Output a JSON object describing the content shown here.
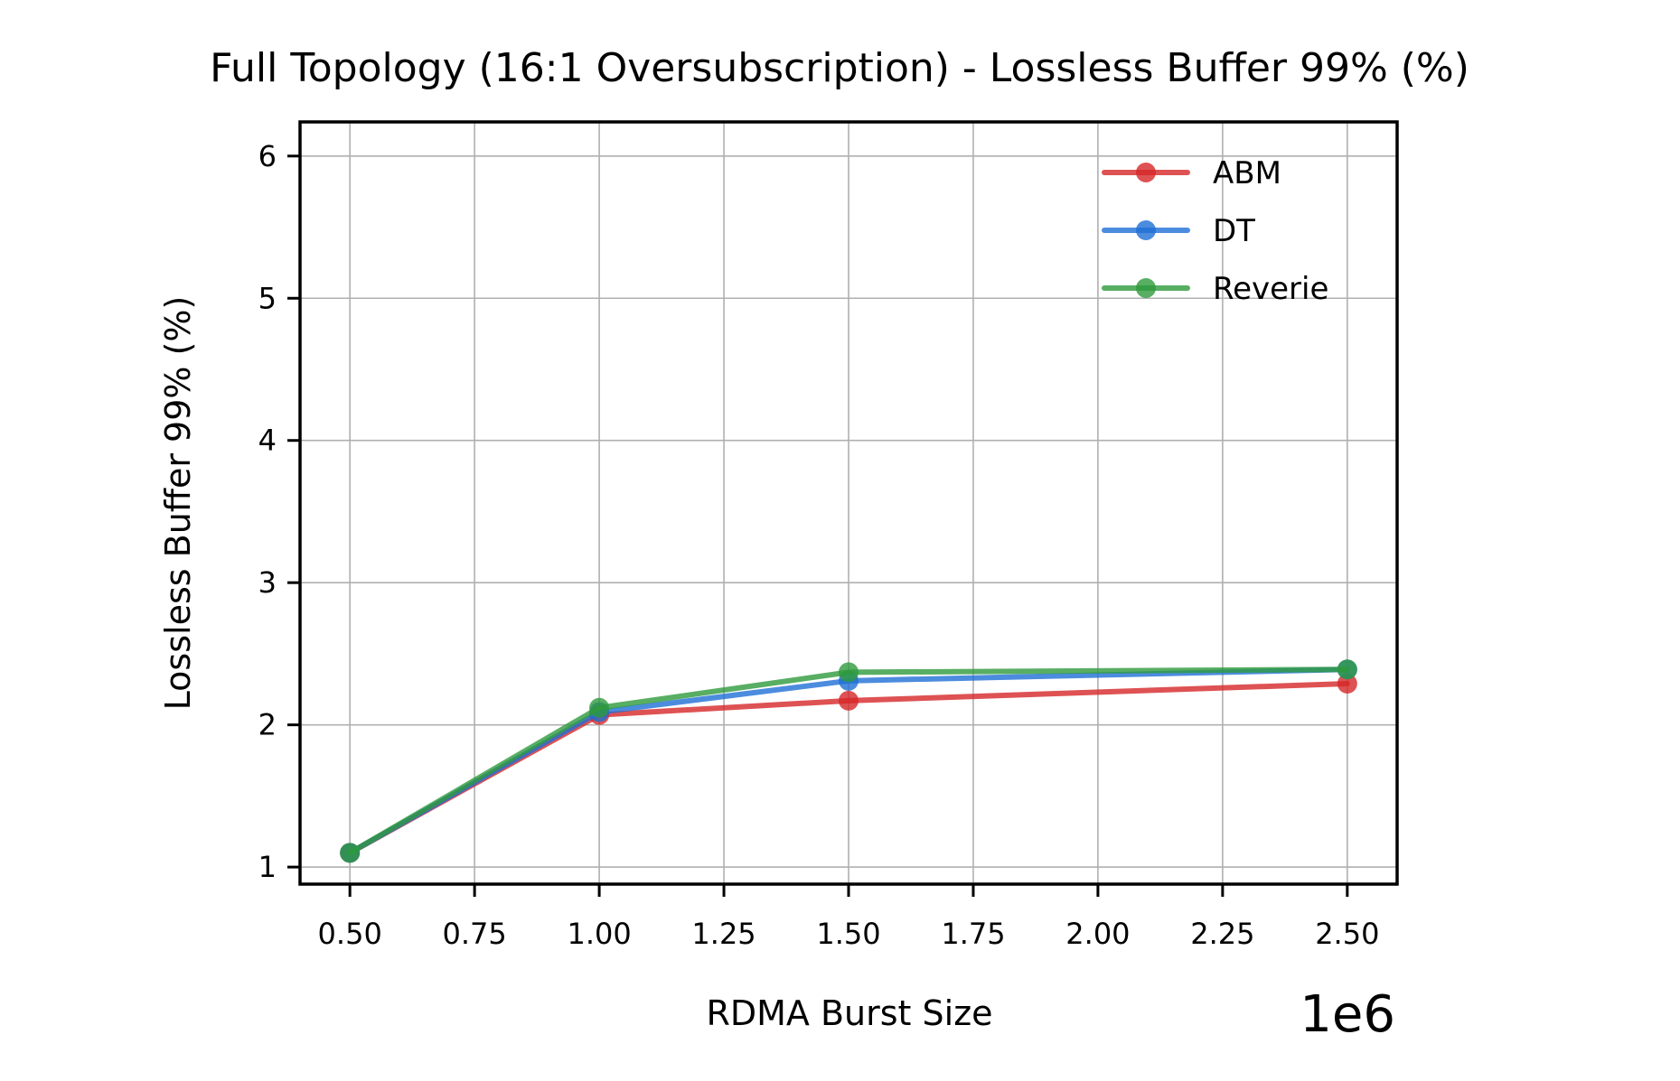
{
  "chart_data": {
    "type": "line",
    "title": "Full Topology (16:1 Oversubscription) - Lossless Buffer 99% (%)",
    "xlabel": "RDMA Burst Size",
    "ylabel": "Lossless Buffer 99% (%)",
    "x_offset_label": "1e6",
    "x_scale": 1000000,
    "xlim": [
      0.4,
      2.6
    ],
    "ylim": [
      0.88,
      6.24
    ],
    "x_ticks": [
      0.5,
      0.75,
      1.0,
      1.25,
      1.5,
      1.75,
      2.0,
      2.25,
      2.5
    ],
    "x_tick_labels": [
      "0.50",
      "0.75",
      "1.00",
      "1.25",
      "1.50",
      "1.75",
      "2.00",
      "2.25",
      "2.50"
    ],
    "y_ticks": [
      1,
      2,
      3,
      4,
      5,
      6
    ],
    "y_tick_labels": [
      "1",
      "2",
      "3",
      "4",
      "5",
      "6"
    ],
    "grid": true,
    "legend_position": "top-right",
    "x": [
      500000,
      1000000,
      1500000,
      2500000
    ],
    "series": [
      {
        "name": "ABM",
        "color": "#d62728",
        "values": [
          1.1,
          2.07,
          2.17,
          2.29
        ]
      },
      {
        "name": "DT",
        "color": "#1f6fd6",
        "values": [
          1.1,
          2.09,
          2.31,
          2.39
        ]
      },
      {
        "name": "Reverie",
        "color": "#2e9a3c",
        "values": [
          1.1,
          2.12,
          2.37,
          2.39
        ]
      }
    ]
  }
}
